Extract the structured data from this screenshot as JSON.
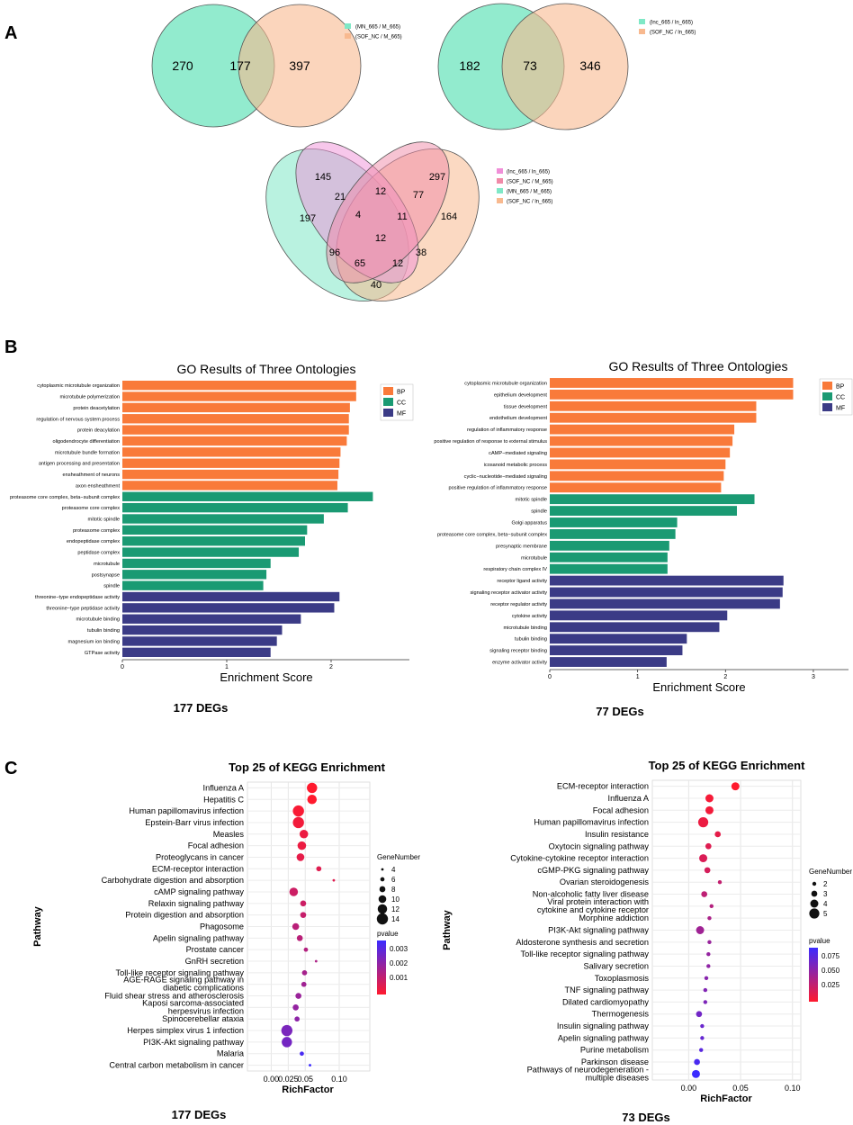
{
  "panels": {
    "a": "A",
    "b": "B",
    "c": "C"
  },
  "venn1": {
    "values": [
      "270",
      "177",
      "397"
    ],
    "legend": [
      "(MN_665 / M_665)",
      "(SOF_NC / M_665)"
    ],
    "colors": [
      "#7fe8c6",
      "#f8b98f"
    ]
  },
  "venn2": {
    "values": [
      "182",
      "73",
      "346"
    ],
    "legend": [
      "(lnc_665 / ln_665)",
      "(SOF_NC / ln_665)"
    ],
    "colors": [
      "#7fe8c6",
      "#f8b98f"
    ]
  },
  "venn4": {
    "values": {
      "v145": "145",
      "v297": "297",
      "v197": "197",
      "v164": "164",
      "v21": "21",
      "v12a": "12",
      "v77": "77",
      "v4": "4",
      "v11": "11",
      "v12c": "12",
      "v96": "96",
      "v38": "38",
      "v65": "65",
      "v12b": "12",
      "v40": "40"
    },
    "legend": [
      "(lnc_665 / ln_665)",
      "(SOF_NC / M_665)",
      "(MN_665 / M_665)",
      "(SOF_NC / ln_665)"
    ],
    "colors": [
      "#f08fd8",
      "#f08aa8",
      "#7fe8c6",
      "#f8b98f"
    ]
  },
  "chart_data": [
    {
      "type": "bar",
      "title": "GO Results of Three Ontologies",
      "xlabel": "Enrichment Score",
      "xlim": [
        0,
        2.75
      ],
      "xticks": [
        "0",
        "1",
        "2"
      ],
      "legend": [
        {
          "name": "BP",
          "color": "#f97a3a"
        },
        {
          "name": "CC",
          "color": "#1a9a73"
        },
        {
          "name": "MF",
          "color": "#3b3b86"
        }
      ],
      "categories": [
        "cytoplasmic microtubule organization",
        "microtubule polymerization",
        "protein deacetylation",
        "regulation of nervous system process",
        "protein deacylation",
        "oligodendrocyte differentiation",
        "microtubule bundle formation",
        "antigen processing and presentation",
        "ensheathment of neurons",
        "axon ensheathment",
        "proteasome core complex, beta−subunit complex",
        "proteasome core complex",
        "mitotic spindle",
        "proteasome complex",
        "endopeptidase complex",
        "peptidase complex",
        "microtubule",
        "postsynapse",
        "spindle",
        "threonine−type endopeptidase activity",
        "threonine−type peptidase activity",
        "microtubule binding",
        "tubulin binding",
        "magnesium ion binding",
        "GTPase activity"
      ],
      "groups": [
        "BP",
        "BP",
        "BP",
        "BP",
        "BP",
        "BP",
        "BP",
        "BP",
        "BP",
        "BP",
        "CC",
        "CC",
        "CC",
        "CC",
        "CC",
        "CC",
        "CC",
        "CC",
        "CC",
        "MF",
        "MF",
        "MF",
        "MF",
        "MF",
        "MF"
      ],
      "values": [
        2.24,
        2.24,
        2.18,
        2.17,
        2.17,
        2.15,
        2.09,
        2.08,
        2.07,
        2.06,
        2.4,
        2.16,
        1.93,
        1.77,
        1.75,
        1.69,
        1.42,
        1.38,
        1.35,
        2.08,
        2.03,
        1.71,
        1.53,
        1.48,
        1.42
      ],
      "caption": "177 DEGs"
    },
    {
      "type": "bar",
      "title": "GO Results of Three Ontologies",
      "xlabel": "Enrichment Score",
      "xlim": [
        0,
        3.4
      ],
      "xticks": [
        "0",
        "1",
        "2",
        "3"
      ],
      "legend": [
        {
          "name": "BP",
          "color": "#f97a3a"
        },
        {
          "name": "CC",
          "color": "#1a9a73"
        },
        {
          "name": "MF",
          "color": "#3b3b86"
        }
      ],
      "categories": [
        "cytoplasmic microtubule organization",
        "epithelium development",
        "tissue development",
        "endothelium development",
        "regulation of inflammatory response",
        "positive regulation of response to external stimulus",
        "cAMP−mediated signaling",
        "icosanoid metabolic process",
        "cyclic−nucleotide−mediated signaling",
        "positive regulation of inflammatory response",
        "mitotic spindle",
        "spindle",
        "Golgi apparatus",
        "proteasome core complex, beta−subunit complex",
        "presynaptic membrane",
        "microtubule",
        "respiratory chain complex IV",
        "receptor ligand activity",
        "signaling receptor activator activity",
        "receptor regulator activity",
        "cytokine activity",
        "microtubule binding",
        "tubulin binding",
        "signaling receptor binding",
        "enzyme activator activity"
      ],
      "groups": [
        "BP",
        "BP",
        "BP",
        "BP",
        "BP",
        "BP",
        "BP",
        "BP",
        "BP",
        "BP",
        "CC",
        "CC",
        "CC",
        "CC",
        "CC",
        "CC",
        "CC",
        "MF",
        "MF",
        "MF",
        "MF",
        "MF",
        "MF",
        "MF",
        "MF"
      ],
      "values": [
        2.77,
        2.77,
        2.35,
        2.35,
        2.1,
        2.08,
        2.05,
        2.0,
        1.98,
        1.95,
        2.33,
        2.13,
        1.45,
        1.43,
        1.36,
        1.34,
        1.34,
        2.66,
        2.65,
        2.62,
        2.02,
        1.93,
        1.56,
        1.51,
        1.33
      ],
      "caption": "77 DEGs"
    },
    {
      "type": "scatter",
      "title": "Top 25 of KEGG Enrichment",
      "xlabel": "RichFactor",
      "ylabel": "Pathway",
      "xlim": [
        -0.035,
        0.145
      ],
      "xticks": [
        0.0,
        0.025,
        0.05,
        0.1
      ],
      "xtick_labels": [
        "0.00",
        "0.025",
        "0.05",
        "0.10"
      ],
      "categories": [
        "Influenza A",
        "Hepatitis C",
        "Human papillomavirus infection",
        "Epstein-Barr virus infection",
        "Measles",
        "Focal adhesion",
        "Proteoglycans in cancer",
        "ECM-receptor interaction",
        "Carbohydrate digestion and absorption",
        "cAMP signaling pathway",
        "Relaxin signaling pathway",
        "Protein digestion and absorption",
        "Phagosome",
        "Apelin signaling pathway",
        "Prostate cancer",
        "GnRH secretion",
        "Toll-like receptor signaling pathway",
        "AGE-RAGE signaling pathway in diabetic complications",
        "Fluid shear stress and atherosclerosis",
        "Kaposi sarcoma-associated herpesvirus infection",
        "Spinocerebellar ataxia",
        "Herpes simplex virus 1 infection",
        "PI3K-Akt signaling pathway",
        "Malaria",
        "Central carbon metabolism in cancer"
      ],
      "richfactor": [
        0.06,
        0.06,
        0.04,
        0.04,
        0.048,
        0.045,
        0.043,
        0.07,
        0.092,
        0.033,
        0.047,
        0.047,
        0.036,
        0.042,
        0.051,
        0.066,
        0.049,
        0.048,
        0.04,
        0.036,
        0.038,
        0.023,
        0.023,
        0.045,
        0.057
      ],
      "gene_number": [
        13,
        12,
        14,
        14,
        11,
        11,
        10,
        7,
        4,
        11,
        8,
        8,
        9,
        8,
        6,
        4,
        7,
        7,
        8,
        8,
        7,
        14,
        13,
        6,
        4
      ],
      "pvalue": [
        0.0005,
        0.0005,
        0.0006,
        0.0007,
        0.0008,
        0.0008,
        0.0009,
        0.001,
        0.001,
        0.0013,
        0.0013,
        0.0014,
        0.0016,
        0.0016,
        0.0017,
        0.0018,
        0.0019,
        0.002,
        0.0021,
        0.0022,
        0.0023,
        0.0026,
        0.0027,
        0.0034,
        0.0036
      ],
      "size_legend": {
        "title": "GeneNumber",
        "values": [
          4,
          6,
          8,
          10,
          12,
          14
        ]
      },
      "color_legend": {
        "title": "pvalue",
        "ticks": [
          "0.003",
          "0.002",
          "0.001"
        ],
        "range": [
          0.0005,
          0.0036
        ],
        "low_color": "#ff1a2e",
        "high_color": "#3b2bff"
      },
      "caption": "177 DEGs"
    },
    {
      "type": "scatter",
      "title": "Top 25 of KEGG Enrichment",
      "xlabel": "RichFactor",
      "ylabel": "Pathway",
      "xlim": [
        -0.035,
        0.108
      ],
      "xticks": [
        0.0,
        0.05,
        0.1
      ],
      "xtick_labels": [
        "0.00",
        "0.05",
        "0.10"
      ],
      "categories": [
        "ECM-receptor interaction",
        "Influenza A",
        "Focal adhesion",
        "Human papillomavirus infection",
        "Insulin resistance",
        "Oxytocin signaling pathway",
        "Cytokine-cytokine receptor interaction",
        "cGMP-PKG signaling pathway",
        "Ovarian steroidogenesis",
        "Non-alcoholic fatty liver disease",
        "Viral protein interaction with cytokine and cytokine receptor",
        "Morphine addiction",
        "PI3K-Akt signaling pathway",
        "Aldosterone synthesis and secretion",
        "Toll-like receptor signaling pathway",
        "Salivary secretion",
        "Toxoplasmosis",
        "TNF signaling pathway",
        "Dilated cardiomyopathy",
        "Thermogenesis",
        "Insulin signaling pathway",
        "Apelin signaling pathway",
        "Purine metabolism",
        "Parkinson disease",
        "Pathways of neurodegeneration - multiple diseases"
      ],
      "richfactor": [
        0.045,
        0.02,
        0.02,
        0.014,
        0.028,
        0.019,
        0.014,
        0.018,
        0.03,
        0.015,
        0.022,
        0.02,
        0.011,
        0.02,
        0.019,
        0.019,
        0.017,
        0.016,
        0.016,
        0.01,
        0.013,
        0.013,
        0.012,
        0.008,
        0.007
      ],
      "gene_number": [
        4,
        4,
        4,
        5,
        3,
        3,
        4,
        3,
        2,
        3,
        2,
        2,
        4,
        2,
        2,
        2,
        2,
        2,
        2,
        3,
        2,
        2,
        2,
        3,
        4
      ],
      "pvalue": [
        0.004,
        0.008,
        0.009,
        0.012,
        0.015,
        0.018,
        0.02,
        0.022,
        0.03,
        0.032,
        0.036,
        0.04,
        0.045,
        0.048,
        0.05,
        0.052,
        0.055,
        0.058,
        0.06,
        0.065,
        0.068,
        0.07,
        0.075,
        0.082,
        0.088
      ],
      "size_legend": {
        "title": "GeneNumber",
        "values": [
          2,
          3,
          4,
          5
        ]
      },
      "color_legend": {
        "title": "pvalue",
        "ticks": [
          "0.075",
          "0.050",
          "0.025"
        ],
        "range": [
          0.004,
          0.088
        ],
        "low_color": "#ff1a2e",
        "high_color": "#3b2bff"
      },
      "caption": "73 DEGs"
    }
  ]
}
